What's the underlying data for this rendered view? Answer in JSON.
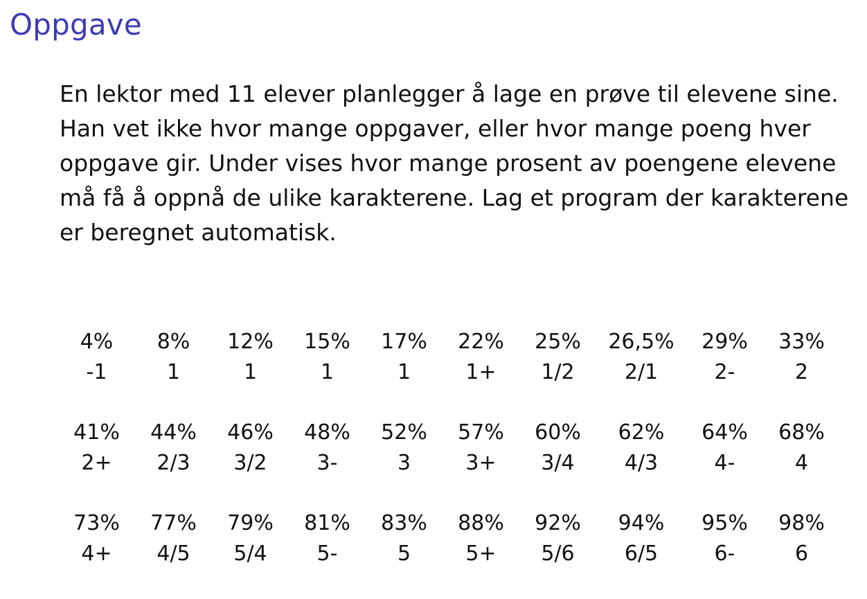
{
  "title": "Oppgave",
  "body_lines": [
    "En lektor med 11 elever planlegger å lage en prøve til elevene sine.",
    "Han vet ikke hvor mange oppgaver, eller hvor mange poeng hver",
    "oppgave gir. Under vises hvor mange prosent av poengene elevene",
    "må få å oppnå de ulike karakterene. Lag et program der karakterene",
    "er beregnet automatisk."
  ],
  "grade_rows": [
    [
      {
        "pct": "4%",
        "grade": "-1"
      },
      {
        "pct": "8%",
        "grade": "1"
      },
      {
        "pct": "12%",
        "grade": "1"
      },
      {
        "pct": "15%",
        "grade": "1"
      },
      {
        "pct": "17%",
        "grade": "1"
      },
      {
        "pct": "22%",
        "grade": "1+"
      },
      {
        "pct": "25%",
        "grade": "1/2"
      },
      {
        "pct": "26,5%",
        "grade": "2/1"
      },
      {
        "pct": "29%",
        "grade": "2-"
      },
      {
        "pct": "33%",
        "grade": "2"
      }
    ],
    [
      {
        "pct": "41%",
        "grade": "2+"
      },
      {
        "pct": "44%",
        "grade": "2/3"
      },
      {
        "pct": "46%",
        "grade": "3/2"
      },
      {
        "pct": "48%",
        "grade": "3-"
      },
      {
        "pct": "52%",
        "grade": "3"
      },
      {
        "pct": "57%",
        "grade": "3+"
      },
      {
        "pct": "60%",
        "grade": "3/4"
      },
      {
        "pct": "62%",
        "grade": "4/3"
      },
      {
        "pct": "64%",
        "grade": "4-"
      },
      {
        "pct": "68%",
        "grade": "4"
      }
    ],
    [
      {
        "pct": "73%",
        "grade": "4+"
      },
      {
        "pct": "77%",
        "grade": "4/5"
      },
      {
        "pct": "79%",
        "grade": "5/4"
      },
      {
        "pct": "81%",
        "grade": "5-"
      },
      {
        "pct": "83%",
        "grade": "5"
      },
      {
        "pct": "88%",
        "grade": "5+"
      },
      {
        "pct": "92%",
        "grade": "5/6"
      },
      {
        "pct": "94%",
        "grade": "6/5"
      },
      {
        "pct": "95%",
        "grade": "6-"
      },
      {
        "pct": "98%",
        "grade": "6"
      }
    ]
  ],
  "colors": {
    "title": "#3b3bb5",
    "text": "#111111",
    "background": "#ffffff"
  }
}
